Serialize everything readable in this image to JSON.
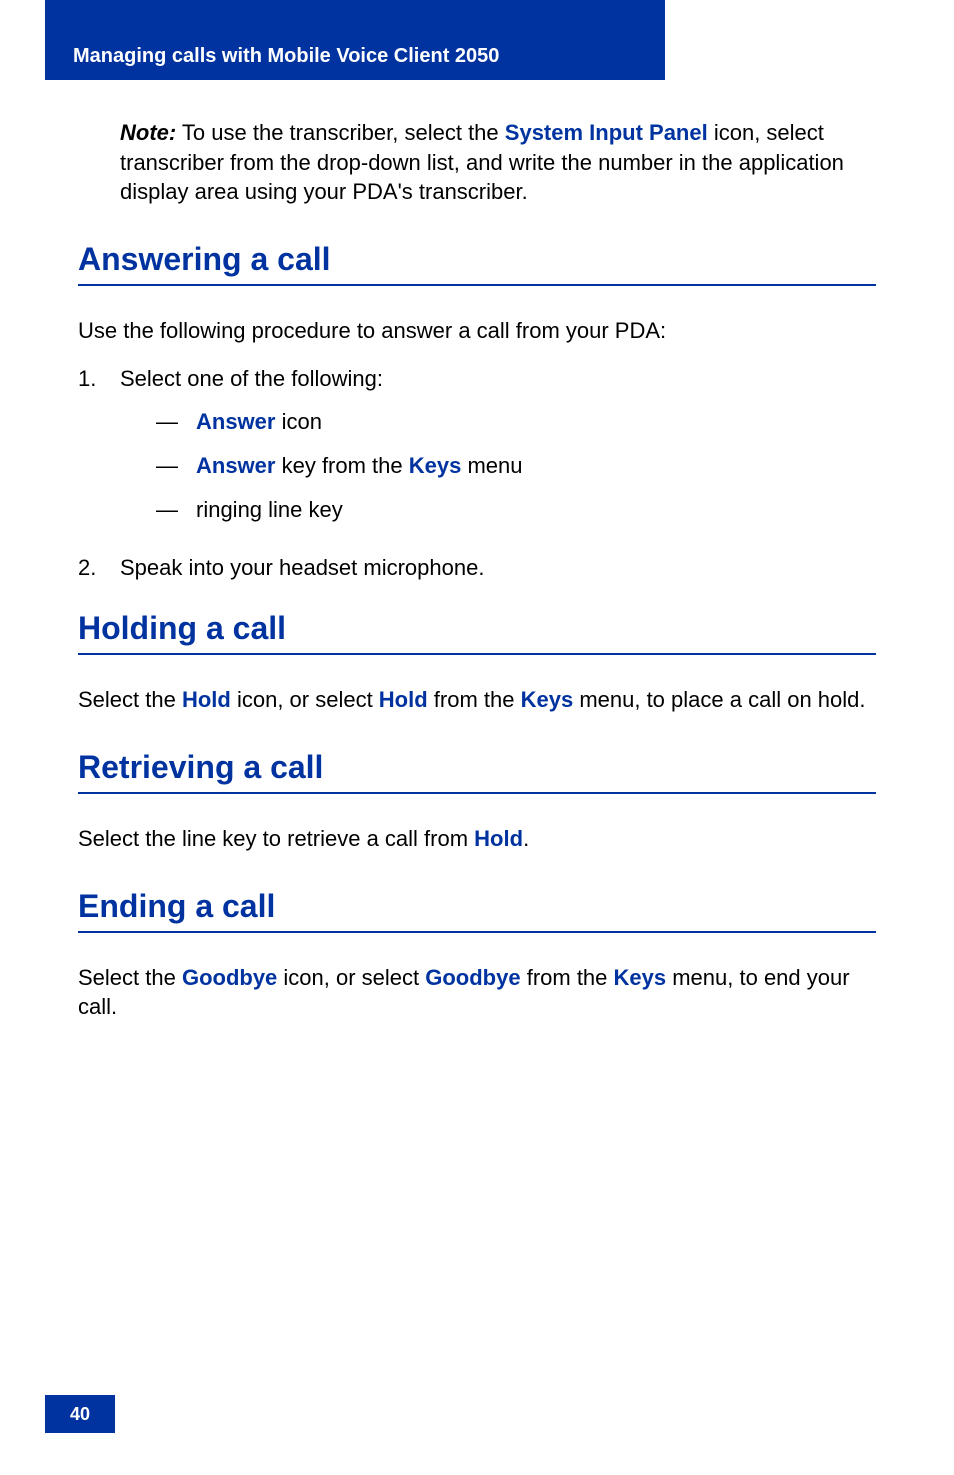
{
  "header": {
    "title": "Managing calls with Mobile Voice Client 2050"
  },
  "note": {
    "label": "Note:",
    "pre": " To use the transcriber, select the ",
    "link": "System Input Panel",
    "post": " icon, select transcriber from the drop-down list, and write the number in the application display area using your PDA's transcriber."
  },
  "sections": {
    "answering": {
      "heading": "Answering a call",
      "intro": "Use the following procedure to answer a call from your PDA:",
      "step1_num": "1.",
      "step1_text": "Select one of the following:",
      "bullet1_link": "Answer",
      "bullet1_post": " icon",
      "bullet2_link1": "Answer",
      "bullet2_mid": " key from the ",
      "bullet2_link2": "Keys",
      "bullet2_post": " menu",
      "bullet3": "ringing line key",
      "step2_num": "2.",
      "step2_text": "Speak into your headset microphone."
    },
    "holding": {
      "heading": "Holding a call",
      "pre": "Select the ",
      "link1": "Hold",
      "mid1": " icon, or select ",
      "link2": "Hold",
      "mid2": " from the ",
      "link3": "Keys",
      "post": " menu, to place a call on hold."
    },
    "retrieving": {
      "heading": "Retrieving a call",
      "pre": "Select the line key to retrieve a call from ",
      "link": "Hold",
      "post": "."
    },
    "ending": {
      "heading": "Ending a call",
      "pre": "Select the ",
      "link1": "Goodbye",
      "mid1": " icon, or select ",
      "link2": "Goodbye",
      "mid2": " from the ",
      "link3": "Keys",
      "post": " menu, to end your call."
    }
  },
  "page_number": "40",
  "colors": {
    "brand_blue": "#0033a0",
    "text": "#000000",
    "bg": "#ffffff"
  }
}
